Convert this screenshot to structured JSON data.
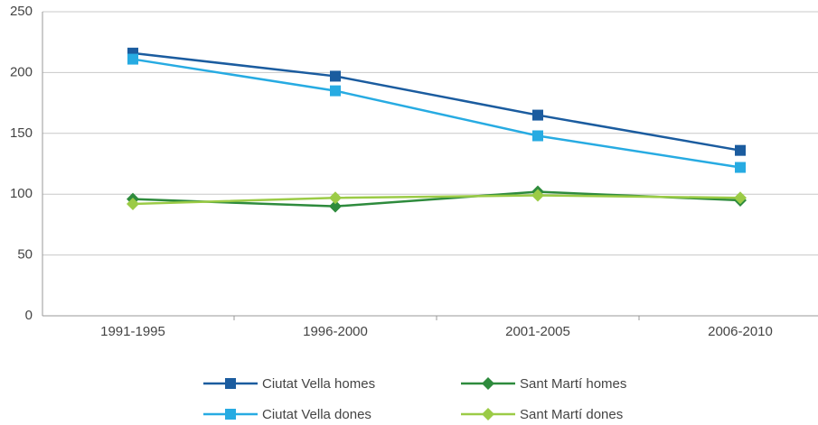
{
  "chart_data": {
    "type": "line",
    "categories": [
      "1991-1995",
      "1996-2000",
      "2001-2005",
      "2006-2010"
    ],
    "series": [
      {
        "name": "Ciutat Vella homes",
        "color": "#1b5c9f",
        "marker": "square",
        "values": [
          216,
          197,
          165,
          136
        ]
      },
      {
        "name": "Ciutat Vella dones",
        "color": "#27abe2",
        "marker": "square",
        "values": [
          211,
          185,
          148,
          122
        ]
      },
      {
        "name": "Sant Martí homes",
        "color": "#2e8b3d",
        "marker": "diamond",
        "values": [
          96,
          90,
          102,
          95
        ]
      },
      {
        "name": "Sant Martí dones",
        "color": "#9bcb46",
        "marker": "diamond",
        "values": [
          92,
          97,
          99,
          97
        ]
      }
    ],
    "ylim": [
      0,
      250
    ],
    "yticks": [
      0,
      50,
      100,
      150,
      200,
      250
    ],
    "grid": true
  }
}
